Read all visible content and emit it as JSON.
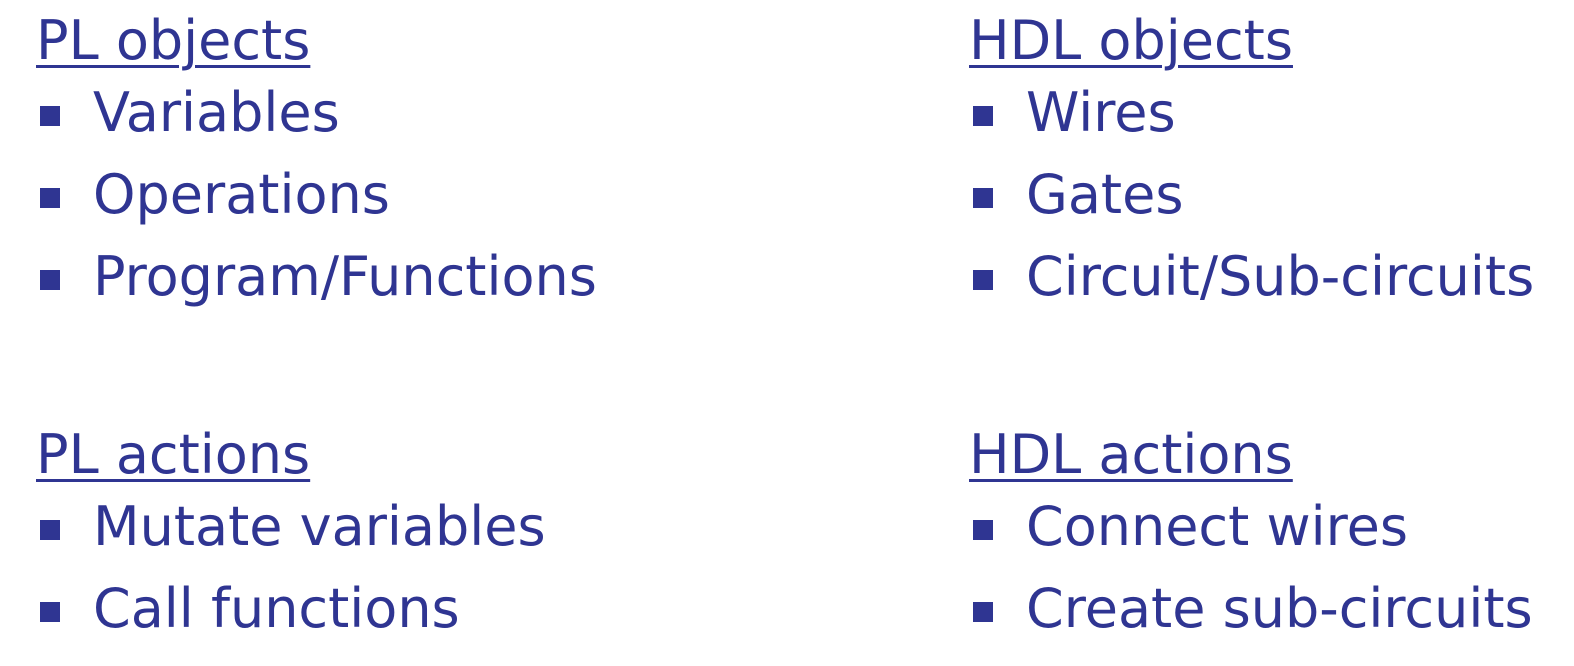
{
  "accent_color": "#2f3592",
  "columns": {
    "pl_objects": {
      "title": "PL objects",
      "items": [
        "Variables",
        "Operations",
        "Program/Functions"
      ]
    },
    "hdl_objects": {
      "title": "HDL objects",
      "items": [
        "Wires",
        "Gates",
        "Circuit/Sub-circuits"
      ]
    },
    "pl_actions": {
      "title": "PL actions",
      "items": [
        "Mutate variables",
        "Call functions"
      ]
    },
    "hdl_actions": {
      "title": "HDL actions",
      "items": [
        "Connect wires",
        "Create sub-circuits"
      ]
    }
  }
}
